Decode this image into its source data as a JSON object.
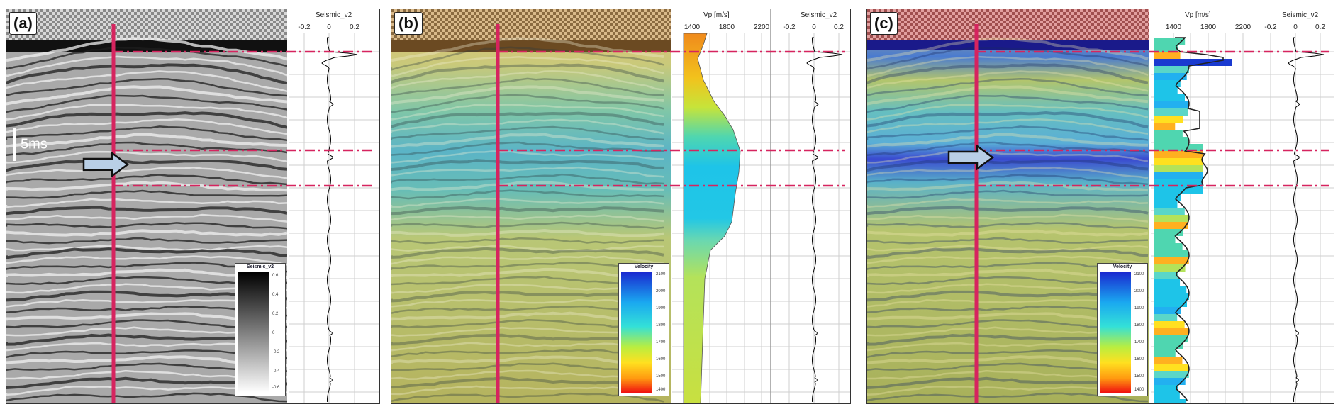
{
  "panels": [
    {
      "label": "(a)"
    },
    {
      "label": "(b)"
    },
    {
      "label": "(c)"
    }
  ],
  "seismic_track": {
    "header": "Seismic_v2",
    "ticks": [
      "-0.2",
      "0",
      "0.2"
    ]
  },
  "vp_track": {
    "header": "Vp [m/s]",
    "ticks": [
      "1400",
      "1800",
      "2200"
    ]
  },
  "scale_bar": {
    "label": "5ms"
  },
  "colorbar_gray": {
    "title": "Seismic_v2",
    "labels": [
      "0.6",
      "0.4",
      "0.2",
      "0",
      "-0.2",
      "-0.4",
      "-0.6"
    ]
  },
  "colorbar_velocity": {
    "title": "Velocity",
    "labels": [
      "2100",
      "2000",
      "1900",
      "1800",
      "1700",
      "1600",
      "1500",
      "1400"
    ]
  },
  "colors": {
    "well_line": "#d6245f",
    "horizon_line": "#d6245f",
    "arrow_fill": "#b9cfe6"
  }
}
